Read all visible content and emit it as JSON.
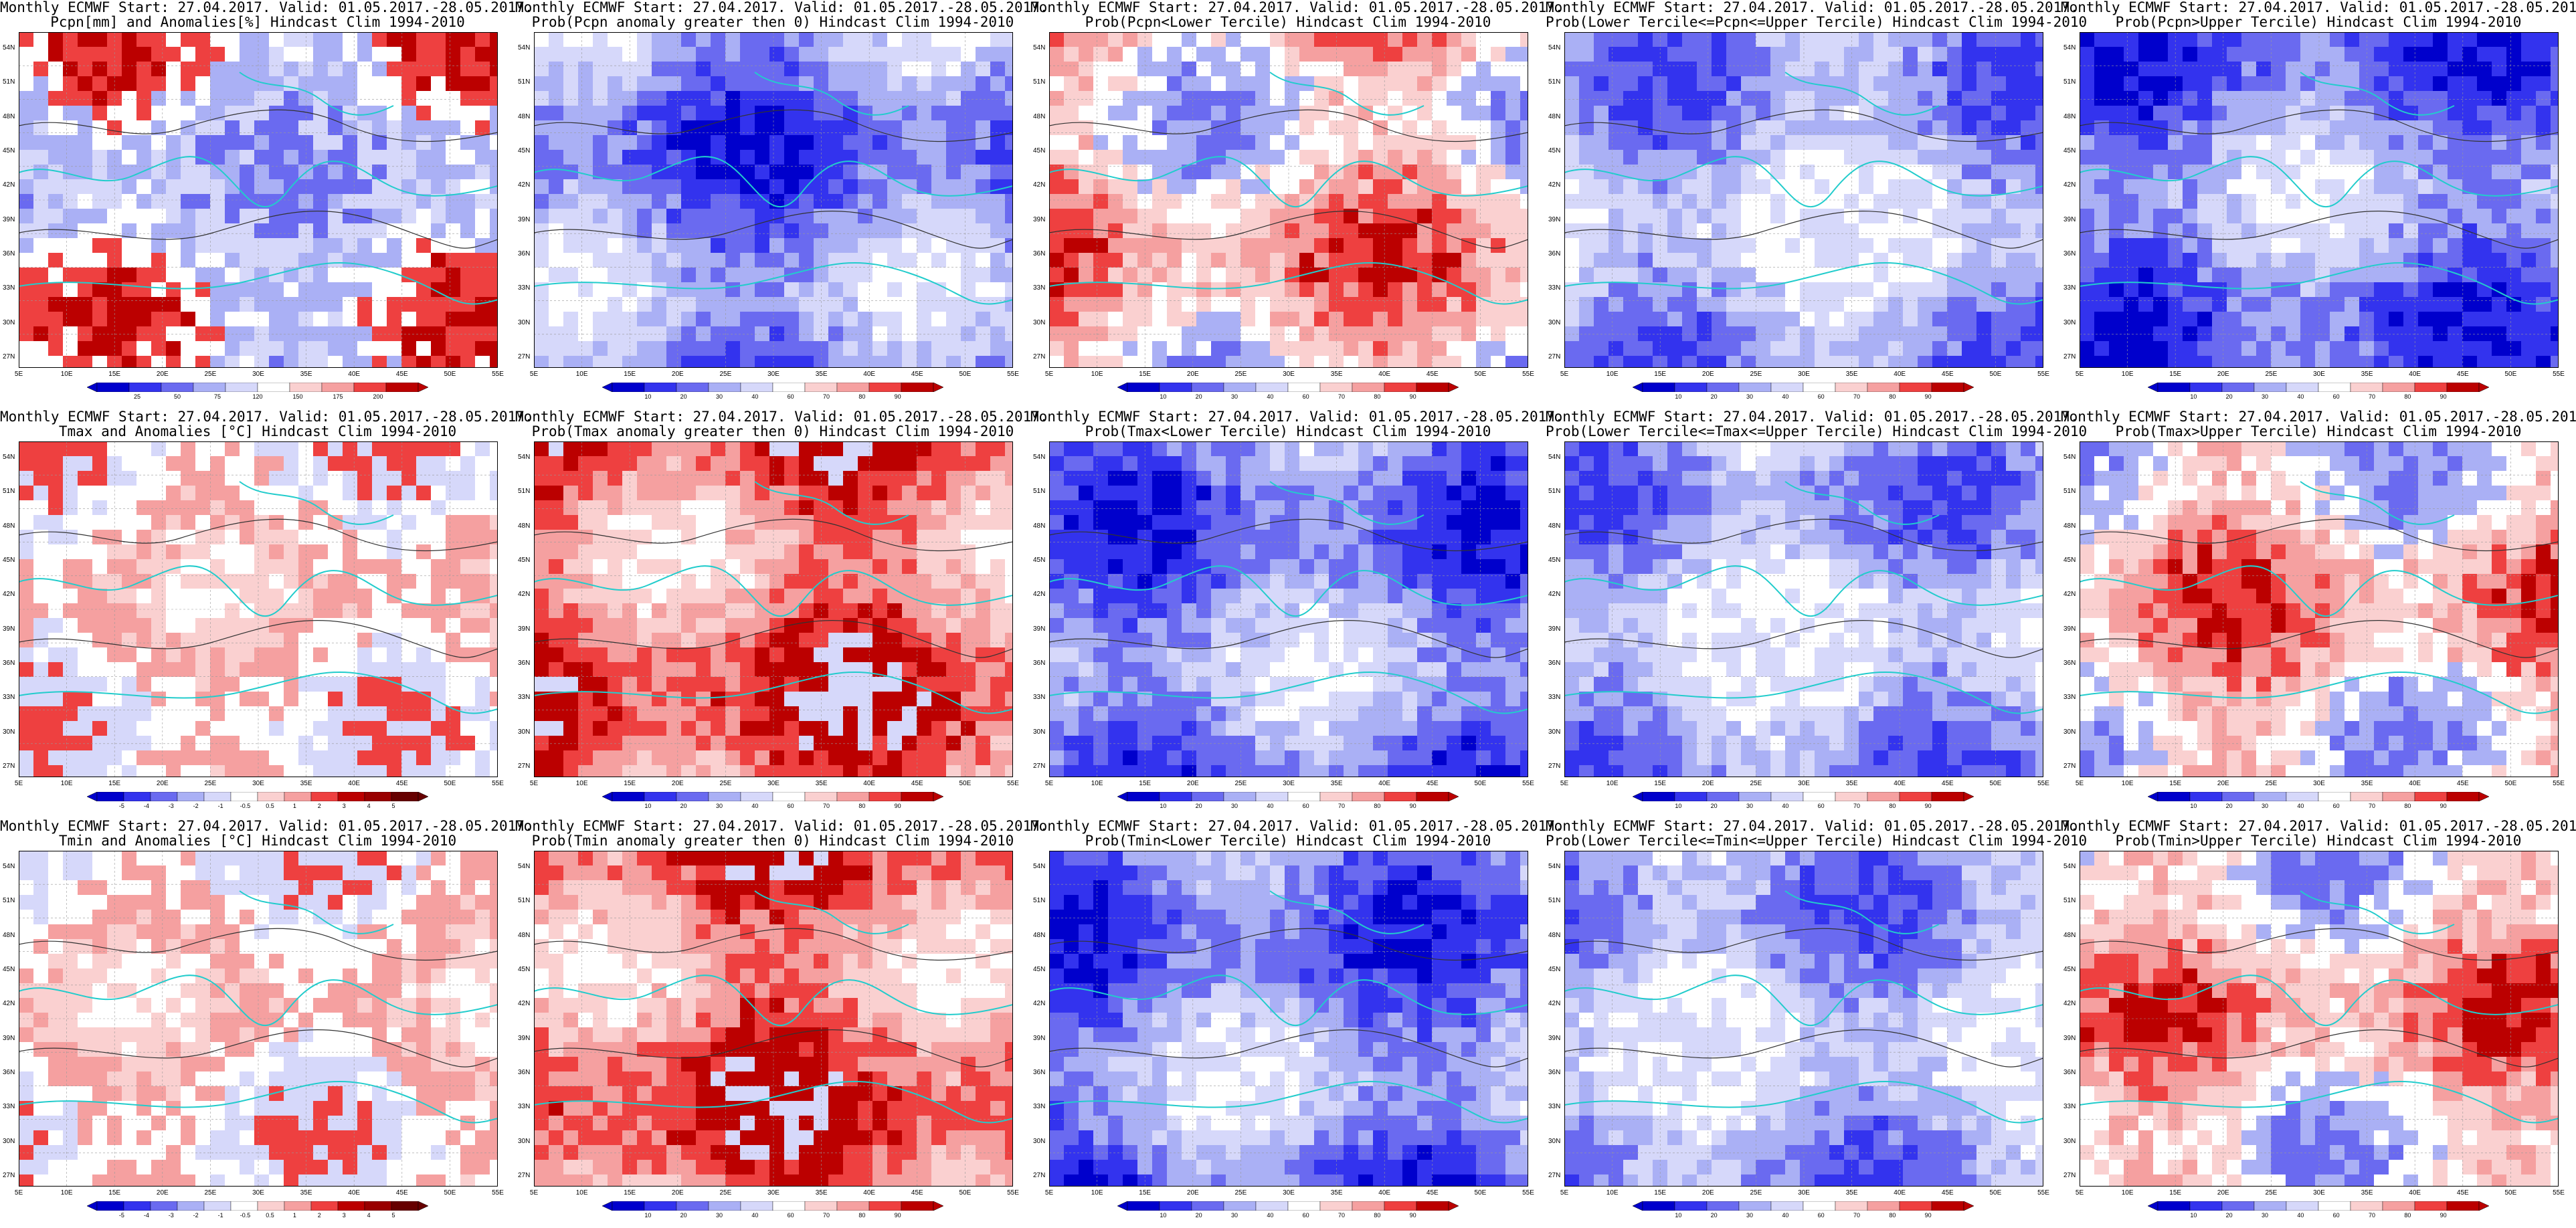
{
  "header_line": "Monthly ECMWF Start: 27.04.2017. Valid: 01.05.2017.-28.05.2017.",
  "lat_ticks": [
    "54N",
    "51N",
    "48N",
    "45N",
    "42N",
    "39N",
    "36N",
    "33N",
    "30N",
    "27N"
  ],
  "lon_ticks": [
    "5E",
    "10E",
    "15E",
    "20E",
    "25E",
    "30E",
    "35E",
    "40E",
    "45E",
    "50E",
    "55E"
  ],
  "colors": {
    "dark_blue": "#0000cc",
    "blue": "#3333ee",
    "mid_blue": "#6a6af0",
    "light_blue": "#aab0f5",
    "pale_blue": "#d6d8fa",
    "white": "#ffffff",
    "pale_red": "#fad0d0",
    "light_red": "#f5a0a0",
    "red": "#ee4040",
    "dark_red": "#bb0000",
    "coast": "#22cccc"
  },
  "rows": [
    {
      "variable": "Pcpn",
      "panels": [
        {
          "title": "Pcpn[mm] and Anomalies[%] Hindcast Clim 1994-2010",
          "kind": "anomaly",
          "colorbar": [
            "25",
            "50",
            "75",
            "120",
            "150",
            "175",
            "200"
          ],
          "palette": "pcpn_anom"
        },
        {
          "title": "Prob(Pcpn anomaly greater then 0) Hindcast Clim 1994-2010",
          "kind": "prob",
          "colorbar": [
            "10",
            "20",
            "30",
            "40",
            "60",
            "70",
            "80",
            "90"
          ],
          "palette": "deep_blue"
        },
        {
          "title": "Prob(Pcpn<Lower Tercile) Hindcast Clim 1994-2010",
          "kind": "prob",
          "colorbar": [
            "10",
            "20",
            "30",
            "40",
            "60",
            "70",
            "80",
            "90"
          ],
          "palette": "mixed_red"
        },
        {
          "title": "Prob(Lower Tercile<=Pcpn<=Upper Tercile) Hindcast Clim 1994-2010",
          "kind": "prob",
          "colorbar": [
            "10",
            "20",
            "30",
            "40",
            "60",
            "70",
            "80",
            "90"
          ],
          "palette": "mid_blue"
        },
        {
          "title": "Prob(Pcpn>Upper Tercile) Hindcast Clim 1994-2010",
          "kind": "prob",
          "colorbar": [
            "10",
            "20",
            "30",
            "40",
            "60",
            "70",
            "80",
            "90"
          ],
          "palette": "deep_blue"
        }
      ]
    },
    {
      "variable": "Tmax",
      "panels": [
        {
          "title": "Tmax and Anomalies [°C] Hindcast Clim 1994-2010",
          "kind": "anomaly",
          "colorbar": [
            "-5",
            "-4",
            "-3",
            "-2",
            "-1",
            "-0.5",
            "0.5",
            "1",
            "2",
            "3",
            "4",
            "5"
          ],
          "palette": "t_anom"
        },
        {
          "title": "Prob(Tmax anomaly greater then 0) Hindcast Clim 1994-2010",
          "kind": "prob",
          "colorbar": [
            "10",
            "20",
            "30",
            "40",
            "60",
            "70",
            "80",
            "90"
          ],
          "palette": "warm"
        },
        {
          "title": "Prob(Tmax<Lower Tercile) Hindcast Clim 1994-2010",
          "kind": "prob",
          "colorbar": [
            "10",
            "20",
            "30",
            "40",
            "60",
            "70",
            "80",
            "90"
          ],
          "palette": "deep_blue"
        },
        {
          "title": "Prob(Lower Tercile<=Tmax<=Upper Tercile) Hindcast Clim 1994-2010",
          "kind": "prob",
          "colorbar": [
            "10",
            "20",
            "30",
            "40",
            "60",
            "70",
            "80",
            "90"
          ],
          "palette": "mid_blue"
        },
        {
          "title": "Prob(Tmax>Upper Tercile) Hindcast Clim 1994-2010",
          "kind": "prob",
          "colorbar": [
            "10",
            "20",
            "30",
            "40",
            "60",
            "70",
            "80",
            "90"
          ],
          "palette": "mixed_red"
        }
      ]
    },
    {
      "variable": "Tmin",
      "panels": [
        {
          "title": "Tmin and Anomalies [°C] Hindcast Clim 1994-2010",
          "kind": "anomaly",
          "colorbar": [
            "-5",
            "-4",
            "-3",
            "-2",
            "-1",
            "-0.5",
            "0.5",
            "1",
            "2",
            "3",
            "4",
            "5"
          ],
          "palette": "t_anom"
        },
        {
          "title": "Prob(Tmin anomaly greater then 0) Hindcast Clim 1994-2010",
          "kind": "prob",
          "colorbar": [
            "10",
            "20",
            "30",
            "40",
            "60",
            "70",
            "80",
            "90"
          ],
          "palette": "warm"
        },
        {
          "title": "Prob(Tmin<Lower Tercile) Hindcast Clim 1994-2010",
          "kind": "prob",
          "colorbar": [
            "10",
            "20",
            "30",
            "40",
            "60",
            "70",
            "80",
            "90"
          ],
          "palette": "deep_blue"
        },
        {
          "title": "Prob(Lower Tercile<=Tmin<=Upper Tercile) Hindcast Clim 1994-2010",
          "kind": "prob",
          "colorbar": [
            "10",
            "20",
            "30",
            "40",
            "60",
            "70",
            "80",
            "90"
          ],
          "palette": "mid_blue"
        },
        {
          "title": "Prob(Tmin>Upper Tercile) Hindcast Clim 1994-2010",
          "kind": "prob",
          "colorbar": [
            "10",
            "20",
            "30",
            "40",
            "60",
            "70",
            "80",
            "90"
          ],
          "palette": "mixed_red"
        }
      ]
    }
  ]
}
